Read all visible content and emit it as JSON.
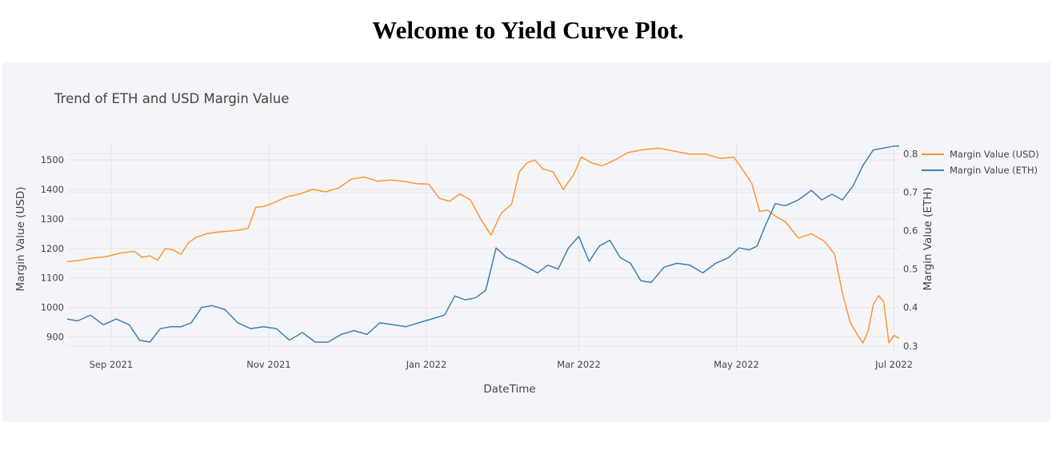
{
  "page": {
    "title": "Welcome to Yield Curve Plot."
  },
  "chart_data": {
    "type": "line",
    "title": "Trend of ETH and USD Margin Value",
    "xlabel": "DateTime",
    "ylabel": "Margin Value (USD)",
    "y2label": "Margin Value (ETH)",
    "xlim": [
      "2021-08-15",
      "2022-07-03"
    ],
    "ylim": [
      850,
      1560
    ],
    "y2lim": [
      0.285,
      0.83
    ],
    "x_ticks": [
      {
        "date": "2021-09-01",
        "label": "Sep 2021"
      },
      {
        "date": "2021-11-01",
        "label": "Nov 2021"
      },
      {
        "date": "2022-01-01",
        "label": "Jan 2022"
      },
      {
        "date": "2022-03-01",
        "label": "Mar 2022"
      },
      {
        "date": "2022-05-01",
        "label": "May 2022"
      },
      {
        "date": "2022-07-01",
        "label": "Jul 2022"
      }
    ],
    "y_ticks": [
      900,
      1000,
      1100,
      1200,
      1300,
      1400,
      1500
    ],
    "y2_ticks": [
      0.3,
      0.4,
      0.5,
      0.6,
      0.7,
      0.8
    ],
    "grid": true,
    "legend_position": "top-right",
    "colors": {
      "usd": "#ff9632",
      "eth": "#3e80b3"
    },
    "series": [
      {
        "name": "Margin Value (USD)",
        "axis": "y",
        "x": [
          "2021-08-15",
          "2021-08-20",
          "2021-08-25",
          "2021-08-30",
          "2021-09-05",
          "2021-09-10",
          "2021-09-13",
          "2021-09-16",
          "2021-09-19",
          "2021-09-22",
          "2021-09-25",
          "2021-09-28",
          "2021-10-01",
          "2021-10-04",
          "2021-10-08",
          "2021-10-12",
          "2021-10-16",
          "2021-10-20",
          "2021-10-24",
          "2021-10-27",
          "2021-10-30",
          "2021-11-03",
          "2021-11-08",
          "2021-11-13",
          "2021-11-18",
          "2021-11-23",
          "2021-11-28",
          "2021-12-03",
          "2021-12-08",
          "2021-12-13",
          "2021-12-18",
          "2021-12-23",
          "2021-12-28",
          "2022-01-02",
          "2022-01-06",
          "2022-01-10",
          "2022-01-14",
          "2022-01-18",
          "2022-01-22",
          "2022-01-26",
          "2022-01-30",
          "2022-02-03",
          "2022-02-06",
          "2022-02-09",
          "2022-02-12",
          "2022-02-15",
          "2022-02-19",
          "2022-02-23",
          "2022-02-27",
          "2022-03-02",
          "2022-03-06",
          "2022-03-10",
          "2022-03-15",
          "2022-03-20",
          "2022-03-26",
          "2022-04-01",
          "2022-04-07",
          "2022-04-13",
          "2022-04-19",
          "2022-04-25",
          "2022-04-30",
          "2022-05-04",
          "2022-05-07",
          "2022-05-10",
          "2022-05-13",
          "2022-05-16",
          "2022-05-20",
          "2022-05-25",
          "2022-05-30",
          "2022-06-04",
          "2022-06-08",
          "2022-06-11",
          "2022-06-14",
          "2022-06-17",
          "2022-06-19",
          "2022-06-21",
          "2022-06-23",
          "2022-06-25",
          "2022-06-27",
          "2022-06-29",
          "2022-07-01",
          "2022-07-03"
        ],
        "values": [
          1155,
          1160,
          1168,
          1172,
          1185,
          1190,
          1170,
          1175,
          1160,
          1200,
          1195,
          1180,
          1220,
          1238,
          1250,
          1255,
          1258,
          1262,
          1268,
          1340,
          1342,
          1355,
          1375,
          1385,
          1400,
          1392,
          1405,
          1435,
          1442,
          1428,
          1432,
          1428,
          1420,
          1418,
          1370,
          1360,
          1385,
          1365,
          1300,
          1245,
          1320,
          1350,
          1460,
          1490,
          1500,
          1470,
          1460,
          1400,
          1450,
          1510,
          1490,
          1480,
          1500,
          1525,
          1535,
          1540,
          1530,
          1520,
          1520,
          1505,
          1510,
          1460,
          1420,
          1325,
          1330,
          1310,
          1290,
          1235,
          1250,
          1225,
          1180,
          1050,
          950,
          905,
          880,
          920,
          1010,
          1040,
          1020,
          880,
          905,
          895
        ]
      },
      {
        "name": "Margin Value (ETH)",
        "axis": "y2",
        "x": [
          "2021-08-15",
          "2021-08-19",
          "2021-08-24",
          "2021-08-29",
          "2021-09-03",
          "2021-09-08",
          "2021-09-12",
          "2021-09-16",
          "2021-09-20",
          "2021-09-24",
          "2021-09-28",
          "2021-10-02",
          "2021-10-06",
          "2021-10-10",
          "2021-10-15",
          "2021-10-20",
          "2021-10-25",
          "2021-10-30",
          "2021-11-04",
          "2021-11-09",
          "2021-11-14",
          "2021-11-19",
          "2021-11-24",
          "2021-11-29",
          "2021-12-04",
          "2021-12-09",
          "2021-12-14",
          "2021-12-19",
          "2021-12-24",
          "2021-12-29",
          "2022-01-03",
          "2022-01-08",
          "2022-01-12",
          "2022-01-16",
          "2022-01-20",
          "2022-01-24",
          "2022-01-28",
          "2022-02-01",
          "2022-02-05",
          "2022-02-09",
          "2022-02-13",
          "2022-02-17",
          "2022-02-21",
          "2022-02-25",
          "2022-03-01",
          "2022-03-05",
          "2022-03-09",
          "2022-03-13",
          "2022-03-17",
          "2022-03-21",
          "2022-03-25",
          "2022-03-29",
          "2022-04-03",
          "2022-04-08",
          "2022-04-13",
          "2022-04-18",
          "2022-04-23",
          "2022-04-28",
          "2022-05-02",
          "2022-05-06",
          "2022-05-09",
          "2022-05-12",
          "2022-05-16",
          "2022-05-20",
          "2022-05-25",
          "2022-05-30",
          "2022-06-03",
          "2022-06-07",
          "2022-06-11",
          "2022-06-15",
          "2022-06-19",
          "2022-06-23",
          "2022-06-27",
          "2022-07-01",
          "2022-07-03"
        ],
        "values": [
          0.37,
          0.365,
          0.38,
          0.355,
          0.37,
          0.355,
          0.315,
          0.31,
          0.345,
          0.35,
          0.35,
          0.36,
          0.4,
          0.405,
          0.395,
          0.36,
          0.345,
          0.35,
          0.345,
          0.315,
          0.335,
          0.31,
          0.31,
          0.33,
          0.34,
          0.33,
          0.36,
          0.355,
          0.35,
          0.36,
          0.37,
          0.38,
          0.43,
          0.42,
          0.425,
          0.445,
          0.555,
          0.53,
          0.52,
          0.505,
          0.49,
          0.51,
          0.5,
          0.555,
          0.585,
          0.52,
          0.56,
          0.575,
          0.53,
          0.515,
          0.47,
          0.465,
          0.505,
          0.515,
          0.51,
          0.49,
          0.515,
          0.53,
          0.555,
          0.55,
          0.56,
          0.61,
          0.67,
          0.665,
          0.68,
          0.705,
          0.68,
          0.695,
          0.68,
          0.715,
          0.77,
          0.81,
          0.815,
          0.82,
          0.82
        ]
      }
    ]
  }
}
